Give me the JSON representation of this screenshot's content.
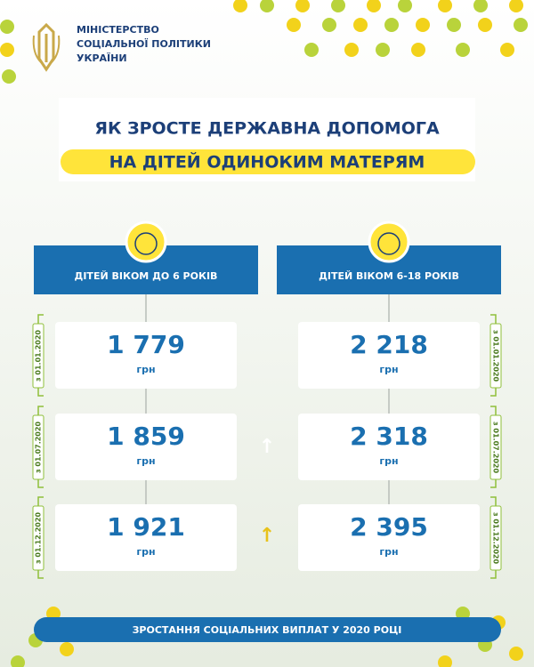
{
  "header": {
    "ministry": [
      "МІНІСТЕРСТВО",
      "СОЦІАЛЬНОЇ ПОЛІТИКИ",
      "УКРАЇНИ"
    ]
  },
  "title": {
    "line1": "ЯК ЗРОСТЕ ДЕРЖАВНА ДОПОМОГА",
    "line2": "НА ДІТЕЙ ОДИНОКИМ МАТЕРЯМ"
  },
  "dates": [
    "з 01.01.2020",
    "з 01.07.2020",
    "з 01.12.2020"
  ],
  "unit": "грн",
  "columns": [
    {
      "heading": "ДІТЕЙ ВІКОМ ДО 6 РОКІВ",
      "amounts": [
        "1 779",
        "1 859",
        "1 921"
      ]
    },
    {
      "heading": "ДІТЕЙ ВІКОМ 6-18 РОКІВ",
      "amounts": [
        "2 218",
        "2 318",
        "2 395"
      ]
    }
  ],
  "footer": "ЗРОСТАННЯ СОЦІАЛЬНИХ ВИПЛАТ У 2020 РОЦІ"
}
